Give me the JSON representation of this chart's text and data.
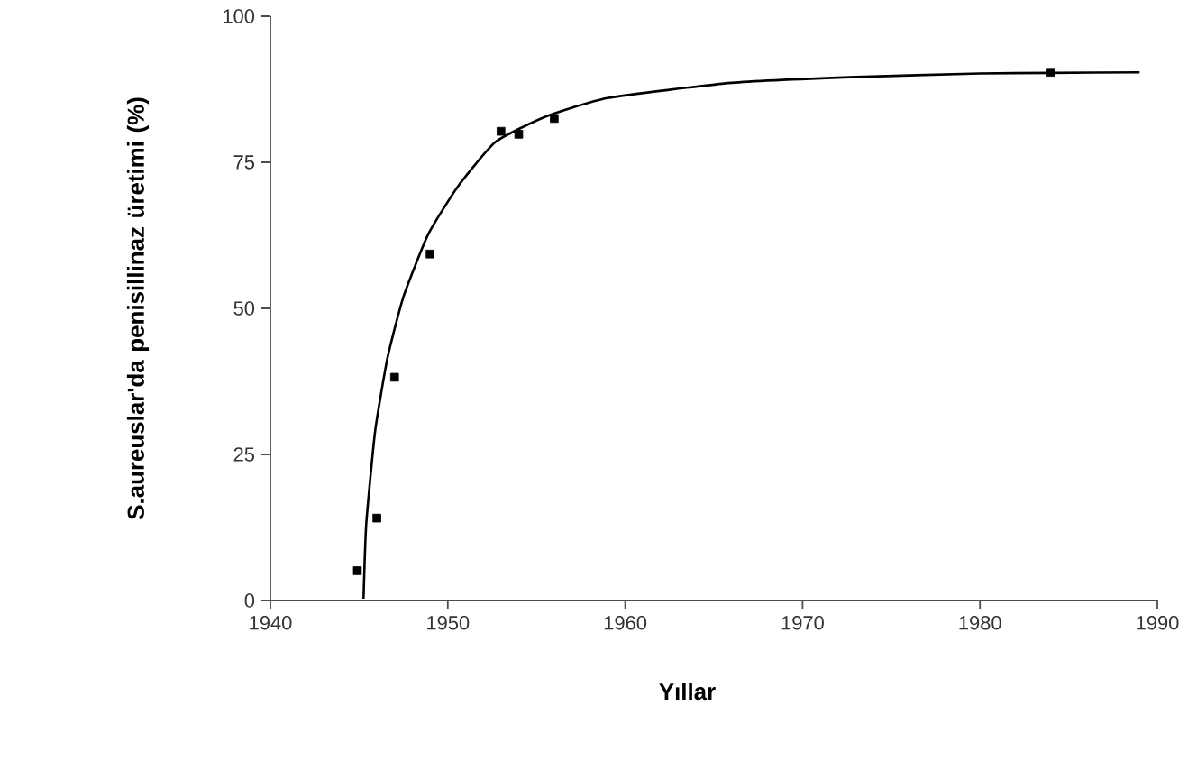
{
  "chart_data": {
    "type": "scatter",
    "xlabel": "Yıllar",
    "ylabel": "S.aureuslar'da penisillinaz üretimi (%)",
    "xlim": [
      1940,
      1990
    ],
    "ylim": [
      0,
      100
    ],
    "xticks": [
      1940,
      1950,
      1960,
      1970,
      1980,
      1990
    ],
    "yticks": [
      0,
      25,
      50,
      75,
      100
    ],
    "grid": false,
    "marker": "square",
    "series": [
      {
        "color": "#000000",
        "x": [
          1944.9,
          1946,
          1947,
          1949,
          1953,
          1954,
          1956,
          1984
        ],
        "values": [
          5.1,
          14.1,
          38.2,
          59.3,
          80.3,
          79.8,
          82.5,
          90.4
        ]
      },
      {
        "type": "line",
        "color": "#000000",
        "marker": "none",
        "line_style": "solid",
        "x": [
          1945.25,
          1945.4,
          1945.9,
          1946.6,
          1947.5,
          1948.9,
          1950.6,
          1952.7,
          1955.5,
          1959,
          1966,
          1973,
          1980,
          1984,
          1989
        ],
        "values": [
          0.3,
          13,
          28.9,
          41.5,
          52,
          62.7,
          71,
          78.5,
          82.8,
          86,
          88.6,
          89.6,
          90.2,
          90.3,
          90.4
        ]
      }
    ]
  }
}
